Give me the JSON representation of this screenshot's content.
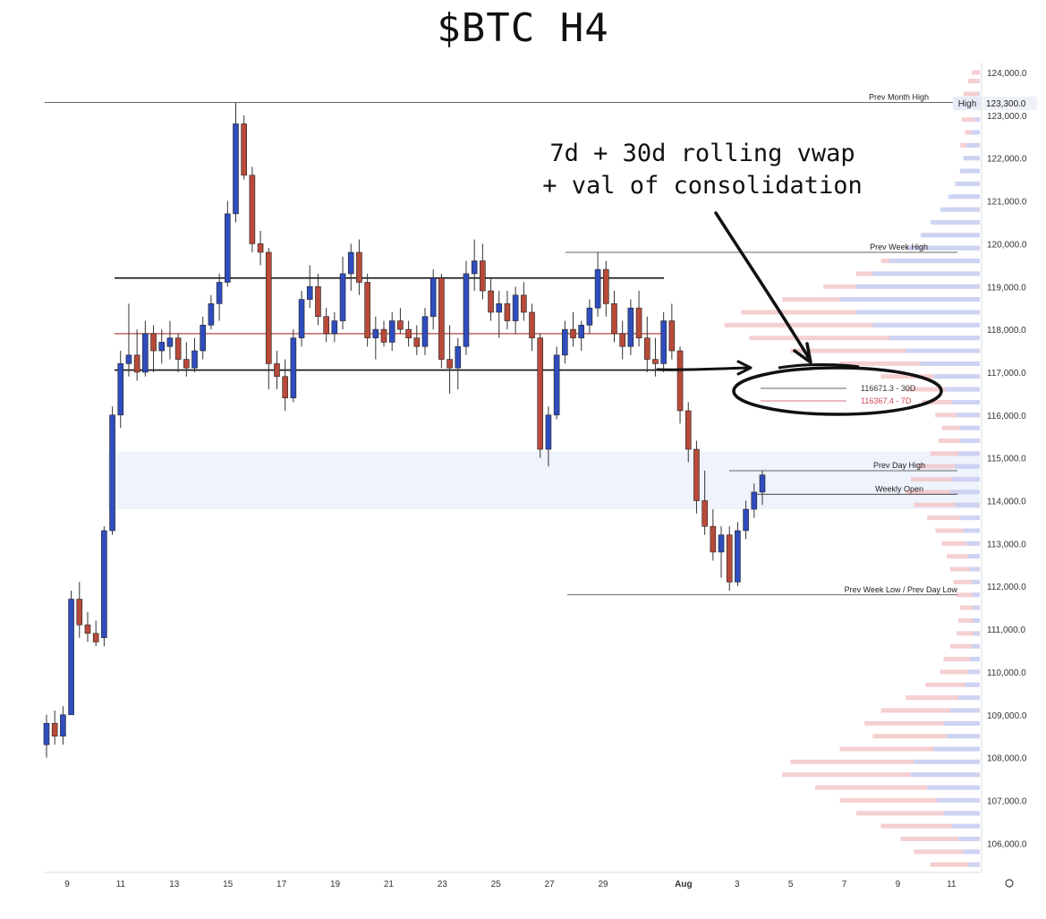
{
  "chart_data": {
    "type": "candlestick",
    "title": "$BTC H4",
    "annotation": [
      "7d + 30d rolling vwap",
      "+ val of consolidation"
    ],
    "y_axis": {
      "range": [
        105200,
        124400
      ],
      "ticks": [
        "124,000.0",
        "123,000.0",
        "122,000.0",
        "121,000.0",
        "120,000.0",
        "119,000.0",
        "118,000.0",
        "117,000.0",
        "116,000.0",
        "115,000.0",
        "114,000.0",
        "113,000.0",
        "112,000.0",
        "111,000.0",
        "110,000.0",
        "109,000.0",
        "108,000.0",
        "107,000.0",
        "106,000.0"
      ],
      "tick_values": [
        124000,
        123000,
        122000,
        121000,
        120000,
        119000,
        118000,
        117000,
        116000,
        115000,
        114000,
        113000,
        112000,
        111000,
        110000,
        109000,
        108000,
        107000,
        106000
      ]
    },
    "x_axis": {
      "ticks": [
        "9",
        "11",
        "13",
        "15",
        "17",
        "19",
        "21",
        "23",
        "25",
        "27",
        "29",
        "Aug",
        "3",
        "5",
        "7",
        "9",
        "11"
      ],
      "tick_day_index": [
        0,
        2,
        4,
        6,
        8,
        10,
        12,
        14,
        16,
        18,
        20,
        23,
        25,
        27,
        29,
        31,
        33
      ]
    },
    "price_label": {
      "text": "High",
      "value": "123,300.0",
      "price": 123300
    },
    "levels": [
      {
        "label": "Prev Month High",
        "price": 123300
      },
      {
        "label": "Prev Week High",
        "price": 119800
      },
      {
        "label": "Prev Day High",
        "price": 114700
      },
      {
        "label": "Weekly Open",
        "price": 114150
      },
      {
        "label": "Prev Week Low / Prev Day Low",
        "price": 111800
      }
    ],
    "consolidation": {
      "high": 119200,
      "low": 117050,
      "vwap_line": 117900
    },
    "value_zone": {
      "high": 115150,
      "low": 113800
    },
    "vwap_labels": [
      {
        "text": "116671.3 - 30D",
        "color": "#333333"
      },
      {
        "text": "116367.4 - 7D",
        "color": "#d0455a"
      }
    ],
    "candles": [
      [
        108300,
        109000,
        108000,
        108800
      ],
      [
        108800,
        109100,
        108300,
        108500
      ],
      [
        108500,
        109200,
        108300,
        109000
      ],
      [
        109000,
        111900,
        109000,
        111700
      ],
      [
        111700,
        112100,
        110800,
        111100
      ],
      [
        111100,
        111400,
        110700,
        110900
      ],
      [
        110900,
        111200,
        110600,
        110700
      ],
      [
        110800,
        113400,
        110600,
        113300
      ],
      [
        113300,
        116200,
        113200,
        116000
      ],
      [
        116000,
        117500,
        115700,
        117200
      ],
      [
        117200,
        118600,
        116900,
        117400
      ],
      [
        117400,
        118000,
        116800,
        117000
      ],
      [
        117000,
        118200,
        116900,
        117900
      ],
      [
        117900,
        118100,
        117000,
        117500
      ],
      [
        117500,
        118000,
        117200,
        117700
      ],
      [
        117600,
        118200,
        117300,
        117800
      ],
      [
        117800,
        117900,
        117000,
        117300
      ],
      [
        117300,
        117700,
        116900,
        117100
      ],
      [
        117100,
        117800,
        117000,
        117500
      ],
      [
        117500,
        118300,
        117300,
        118100
      ],
      [
        118100,
        118800,
        118000,
        118600
      ],
      [
        118600,
        119300,
        118200,
        119100
      ],
      [
        119100,
        121000,
        119000,
        120700
      ],
      [
        120700,
        123300,
        120500,
        122800
      ],
      [
        122800,
        123000,
        121500,
        121600
      ],
      [
        121600,
        121800,
        119800,
        120000
      ],
      [
        120000,
        120300,
        119500,
        119800
      ],
      [
        119800,
        119900,
        116600,
        117200
      ],
      [
        117200,
        117500,
        116600,
        116900
      ],
      [
        116900,
        117300,
        116100,
        116400
      ],
      [
        116400,
        118000,
        116300,
        117800
      ],
      [
        117800,
        118900,
        117600,
        118700
      ],
      [
        118700,
        119500,
        118500,
        119000
      ],
      [
        119000,
        119300,
        118100,
        118300
      ],
      [
        118300,
        118500,
        117700,
        117900
      ],
      [
        117900,
        118400,
        117700,
        118200
      ],
      [
        118200,
        119700,
        118000,
        119300
      ],
      [
        119300,
        120000,
        118900,
        119800
      ],
      [
        119800,
        120100,
        118800,
        119100
      ],
      [
        119100,
        119300,
        117600,
        117800
      ],
      [
        117800,
        118300,
        117300,
        118000
      ],
      [
        118000,
        118200,
        117600,
        117700
      ],
      [
        117700,
        118400,
        117500,
        118200
      ],
      [
        118200,
        118500,
        117900,
        118000
      ],
      [
        118000,
        118200,
        117600,
        117800
      ],
      [
        117800,
        118100,
        117400,
        117600
      ],
      [
        117600,
        118500,
        117400,
        118300
      ],
      [
        118300,
        119400,
        118000,
        119200
      ],
      [
        119200,
        119300,
        117100,
        117300
      ],
      [
        117300,
        118100,
        116500,
        117100
      ],
      [
        117100,
        117800,
        116600,
        117600
      ],
      [
        117600,
        119600,
        117400,
        119300
      ],
      [
        119300,
        120100,
        118900,
        119600
      ],
      [
        119600,
        120000,
        118700,
        118900
      ],
      [
        118900,
        119200,
        118200,
        118400
      ],
      [
        118400,
        118900,
        117800,
        118600
      ],
      [
        118600,
        118900,
        118000,
        118200
      ],
      [
        118200,
        119000,
        117900,
        118800
      ],
      [
        118800,
        119100,
        118200,
        118400
      ],
      [
        118400,
        118600,
        117500,
        117800
      ],
      [
        117800,
        117900,
        115000,
        115200
      ],
      [
        115200,
        116200,
        114800,
        116000
      ],
      [
        116000,
        117600,
        115900,
        117400
      ],
      [
        117400,
        118200,
        117200,
        118000
      ],
      [
        118000,
        118400,
        117600,
        117800
      ],
      [
        117800,
        118200,
        117500,
        118100
      ],
      [
        118100,
        118700,
        117900,
        118500
      ],
      [
        118500,
        119800,
        118300,
        119400
      ],
      [
        119400,
        119600,
        118300,
        118600
      ],
      [
        118600,
        118900,
        117700,
        117900
      ],
      [
        117900,
        118200,
        117300,
        117600
      ],
      [
        117600,
        118700,
        117400,
        118500
      ],
      [
        118500,
        118900,
        117600,
        117800
      ],
      [
        117800,
        118300,
        117000,
        117300
      ],
      [
        117300,
        117800,
        116900,
        117200
      ],
      [
        117200,
        118400,
        117000,
        118200
      ],
      [
        118200,
        118600,
        117300,
        117500
      ],
      [
        117500,
        117600,
        115800,
        116100
      ],
      [
        116100,
        116300,
        114900,
        115200
      ],
      [
        115200,
        115400,
        113700,
        114000
      ],
      [
        114000,
        114700,
        113200,
        113400
      ],
      [
        113400,
        113800,
        112600,
        112800
      ],
      [
        112800,
        113400,
        112200,
        113200
      ],
      [
        113200,
        113400,
        111900,
        112100
      ],
      [
        112100,
        113500,
        112000,
        113300
      ],
      [
        113300,
        114000,
        113100,
        113800
      ],
      [
        113800,
        114400,
        113600,
        114200
      ],
      [
        114200,
        114700,
        113900,
        114600
      ]
    ],
    "volume_profile": [
      [
        124000,
        10,
        0
      ],
      [
        123800,
        14,
        1
      ],
      [
        123500,
        20,
        2
      ],
      [
        123200,
        30,
        4
      ],
      [
        122900,
        22,
        6
      ],
      [
        122600,
        18,
        10
      ],
      [
        122300,
        24,
        16
      ],
      [
        122000,
        20,
        20
      ],
      [
        121700,
        24,
        24
      ],
      [
        121400,
        28,
        30
      ],
      [
        121100,
        32,
        38
      ],
      [
        120800,
        40,
        48
      ],
      [
        120500,
        50,
        60
      ],
      [
        120200,
        70,
        72
      ],
      [
        119900,
        90,
        90
      ],
      [
        119600,
        120,
        110
      ],
      [
        119300,
        150,
        130
      ],
      [
        119000,
        190,
        150
      ],
      [
        118700,
        240,
        170
      ],
      [
        118400,
        290,
        150
      ],
      [
        118100,
        310,
        130
      ],
      [
        117800,
        280,
        110
      ],
      [
        117500,
        230,
        90
      ],
      [
        117200,
        170,
        72
      ],
      [
        116900,
        120,
        56
      ],
      [
        116600,
        90,
        42
      ],
      [
        116300,
        70,
        34
      ],
      [
        116000,
        54,
        28
      ],
      [
        115700,
        46,
        24
      ],
      [
        115400,
        50,
        24
      ],
      [
        115100,
        60,
        26
      ],
      [
        114800,
        76,
        30
      ],
      [
        114500,
        84,
        34
      ],
      [
        114200,
        90,
        36
      ],
      [
        113900,
        80,
        30
      ],
      [
        113600,
        64,
        24
      ],
      [
        113300,
        54,
        20
      ],
      [
        113000,
        46,
        16
      ],
      [
        112700,
        40,
        14
      ],
      [
        112400,
        36,
        12
      ],
      [
        112100,
        32,
        10
      ],
      [
        111800,
        28,
        9
      ],
      [
        111500,
        24,
        8
      ],
      [
        111200,
        26,
        8
      ],
      [
        110900,
        28,
        8
      ],
      [
        110600,
        36,
        10
      ],
      [
        110300,
        44,
        12
      ],
      [
        110000,
        48,
        14
      ],
      [
        109700,
        66,
        18
      ],
      [
        109400,
        90,
        26
      ],
      [
        109100,
        120,
        36
      ],
      [
        108800,
        140,
        44
      ],
      [
        108500,
        130,
        40
      ],
      [
        108200,
        170,
        56
      ],
      [
        107900,
        230,
        80
      ],
      [
        107600,
        240,
        84
      ],
      [
        107300,
        200,
        64
      ],
      [
        107000,
        170,
        52
      ],
      [
        106700,
        150,
        44
      ],
      [
        106400,
        120,
        34
      ],
      [
        106100,
        96,
        26
      ],
      [
        105800,
        80,
        20
      ],
      [
        105500,
        60,
        14
      ]
    ]
  }
}
